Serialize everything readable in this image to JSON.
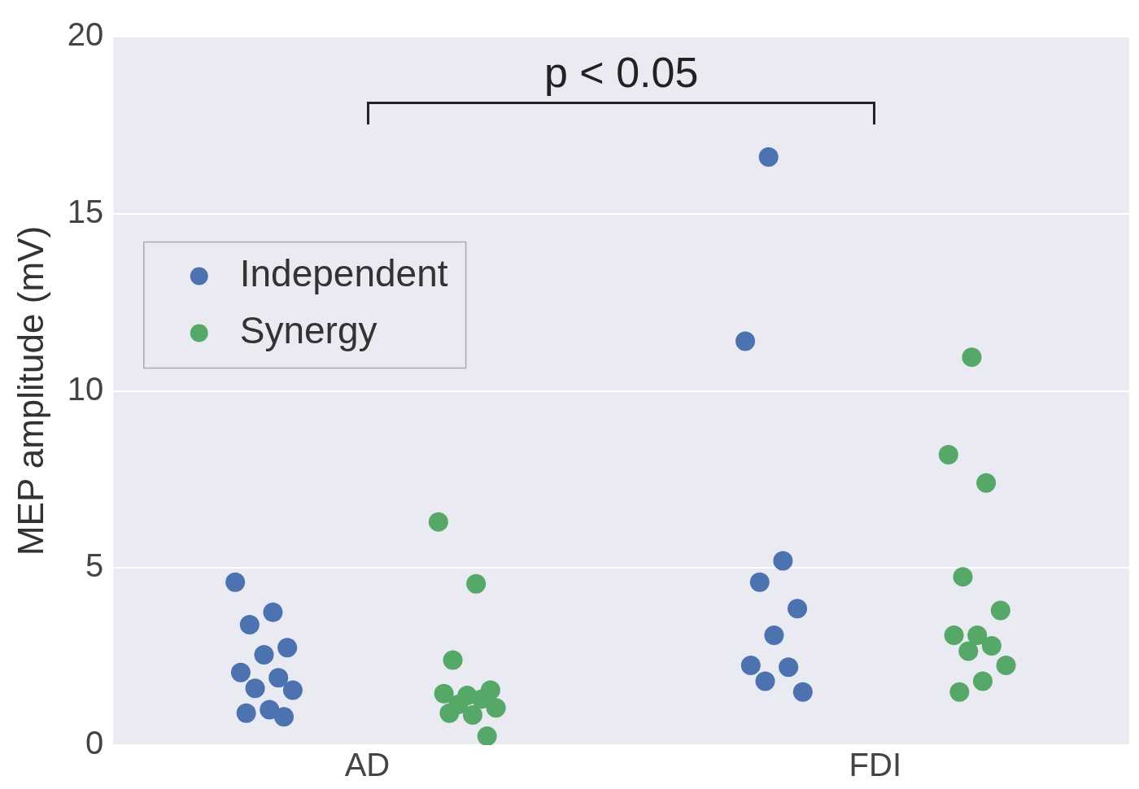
{
  "chart_data": {
    "type": "scatter",
    "categories": [
      "AD",
      "FDI"
    ],
    "ylabel": "MEP amplitude (mV)",
    "ylim": [
      0,
      20
    ],
    "yticks": [
      0,
      5,
      10,
      15,
      20
    ],
    "grid": "y",
    "legend": "left",
    "marker": "circle",
    "annotations": [
      "p < 0.05"
    ],
    "series": [
      {
        "name": "Independent",
        "color": "#4c72b0",
        "x": [
          "AD",
          "AD",
          "AD",
          "AD",
          "AD",
          "AD",
          "AD",
          "AD",
          "AD",
          "AD",
          "AD",
          "AD",
          "FDI",
          "FDI",
          "FDI",
          "FDI",
          "FDI",
          "FDI",
          "FDI",
          "FDI",
          "FDI",
          "FDI"
        ],
        "values": [
          4.6,
          3.75,
          3.4,
          2.75,
          2.55,
          2.05,
          1.9,
          1.6,
          1.55,
          1.0,
          0.9,
          0.8,
          16.6,
          11.4,
          5.2,
          4.6,
          3.85,
          3.1,
          2.25,
          2.2,
          1.8,
          1.5
        ]
      },
      {
        "name": "Synergy",
        "color": "#55a868",
        "x": [
          "AD",
          "AD",
          "AD",
          "AD",
          "AD",
          "AD",
          "AD",
          "AD",
          "AD",
          "AD",
          "AD",
          "AD",
          "FDI",
          "FDI",
          "FDI",
          "FDI",
          "FDI",
          "FDI",
          "FDI",
          "FDI",
          "FDI",
          "FDI",
          "FDI",
          "FDI"
        ],
        "values": [
          6.3,
          4.55,
          2.4,
          1.55,
          1.4,
          1.45,
          1.3,
          1.15,
          1.05,
          0.85,
          0.9,
          0.25,
          10.95,
          8.2,
          7.4,
          4.75,
          3.8,
          3.1,
          3.1,
          2.8,
          2.65,
          2.25,
          1.8,
          1.5
        ]
      }
    ]
  }
}
